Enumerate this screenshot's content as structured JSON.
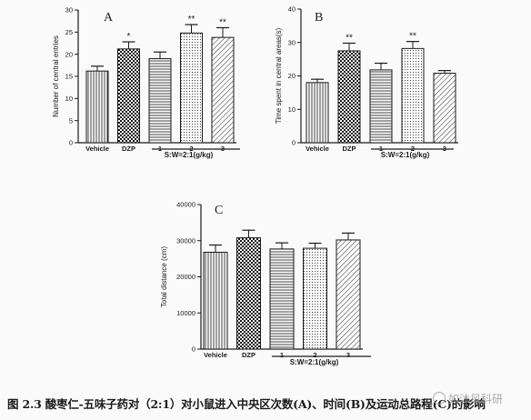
{
  "caption": "图 2.3 酸枣仁-五味子药对（2:1）对小鼠进入中央区次数(A)、时间(B)及运动总路程(C)的影响",
  "watermark": "如沐风科研",
  "colors": {
    "ink": "#1a1a1a",
    "paper": "#fafafa"
  },
  "chart_data": [
    {
      "id": "A",
      "type": "bar",
      "panel_label": "A",
      "ylabel": "Number of central entries",
      "ylim": [
        0,
        30
      ],
      "yticks": [
        "0",
        "5",
        "10",
        "15",
        "20",
        "25",
        "30"
      ],
      "yticks_values": [
        0,
        5,
        10,
        15,
        20,
        25,
        30
      ],
      "categories": [
        "Vehicle",
        "DZP",
        "1",
        "2",
        "3"
      ],
      "values": [
        16.2,
        21.2,
        19.0,
        24.8,
        23.8
      ],
      "errors": [
        1.1,
        1.6,
        1.5,
        1.9,
        2.2
      ],
      "significance": [
        "",
        "*",
        "",
        "**",
        "**"
      ],
      "fills": [
        "vlines",
        "checker",
        "hlines",
        "dots",
        "diag"
      ],
      "group_label": "S:W=2:1(g/kg)"
    },
    {
      "id": "B",
      "type": "bar",
      "panel_label": "B",
      "ylabel": "Time spent in central areas(s)",
      "ylim": [
        0,
        40
      ],
      "yticks": [
        "0",
        "10",
        "20",
        "30",
        "40"
      ],
      "yticks_values": [
        0,
        10,
        20,
        30,
        40
      ],
      "categories": [
        "Vehicle",
        "DZP",
        "1",
        "2",
        "3"
      ],
      "values": [
        18.0,
        27.5,
        21.8,
        28.2,
        20.8
      ],
      "errors": [
        1.0,
        2.3,
        2.0,
        2.1,
        0.8
      ],
      "significance": [
        "",
        "**",
        "",
        "**",
        ""
      ],
      "fills": [
        "vlines",
        "checker",
        "hlines",
        "dots",
        "diag"
      ],
      "group_label": "S:W=2:1(g/kg)"
    },
    {
      "id": "C",
      "type": "bar",
      "panel_label": "C",
      "ylabel": "Total distance (cm)",
      "ylim": [
        0,
        40000
      ],
      "yticks": [
        "0",
        "10000",
        "20000",
        "30000",
        "40000"
      ],
      "yticks_values": [
        0,
        10000,
        20000,
        30000,
        40000
      ],
      "categories": [
        "Vehicle",
        "DZP",
        "1",
        "2",
        "3"
      ],
      "values": [
        26800,
        30800,
        27700,
        27900,
        30200
      ],
      "errors": [
        2000,
        2100,
        1700,
        1400,
        1900
      ],
      "significance": [
        "",
        "",
        "",
        "",
        ""
      ],
      "fills": [
        "vlines",
        "checker",
        "hlines",
        "dots",
        "diag"
      ],
      "group_label": "S:W=2:1(g/kg)"
    }
  ]
}
